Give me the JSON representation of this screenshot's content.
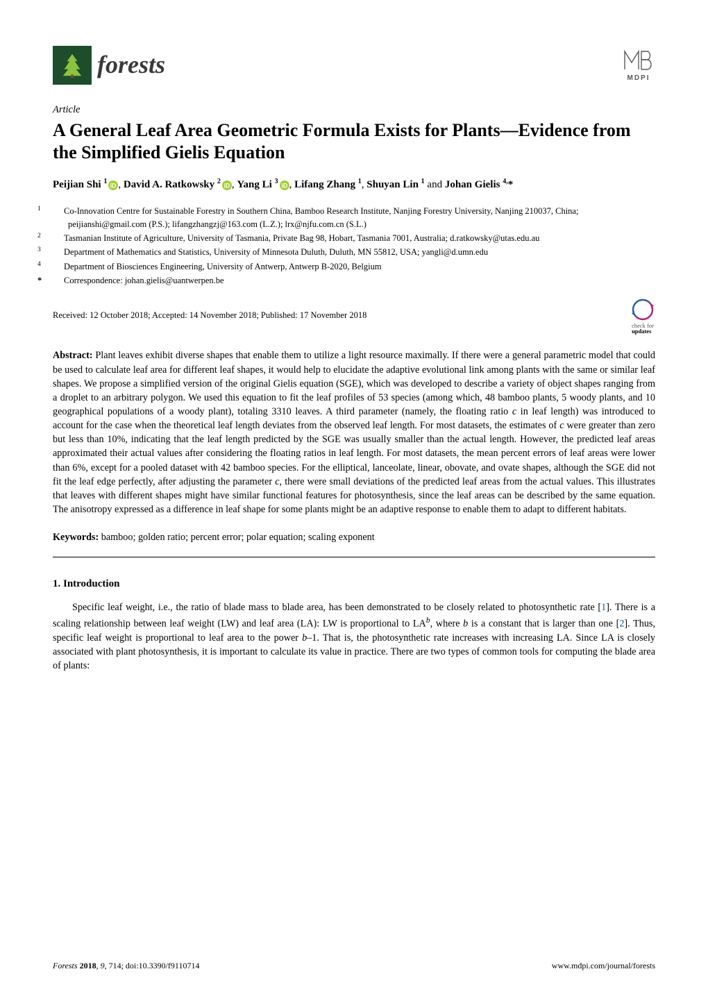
{
  "journal": {
    "name": "forests",
    "logo_bg": "#1d4d2a",
    "tree_fill": "#8bc240"
  },
  "publisher": {
    "name": "MDPI",
    "icon_stroke": "#5a5a5a"
  },
  "article_label": "Article",
  "title": "A General Leaf Area Geometric Formula Exists for Plants—Evidence from the Simplified Gielis Equation",
  "authors_html": "Peijian Shi <sup>1</sup>{orcid}, David A. Ratkowsky <sup>2</sup>{orcid}, Yang Li <sup>3</sup>{orcid}, Lifang Zhang <sup>1</sup>, Shuyan Lin <sup>1</sup> and Johan Gielis <sup>4,</sup>*",
  "authors": {
    "list": [
      {
        "name": "Peijian Shi",
        "sup": "1",
        "orcid": true
      },
      {
        "name": "David A. Ratkowsky",
        "sup": "2",
        "orcid": true
      },
      {
        "name": "Yang Li",
        "sup": "3",
        "orcid": true
      },
      {
        "name": "Lifang Zhang",
        "sup": "1",
        "orcid": false
      },
      {
        "name": "Shuyan Lin",
        "sup": "1",
        "orcid": false
      },
      {
        "name": "Johan Gielis",
        "sup": "4,",
        "orcid": false,
        "corresponding": true
      }
    ],
    "joiner": ", ",
    "last_joiner": " and "
  },
  "affiliations": [
    {
      "num": "1",
      "text": "Co-Innovation Centre for Sustainable Forestry in Southern China, Bamboo Research Institute, Nanjing Forestry University, Nanjing 210037, China; peijianshi@gmail.com (P.S.); lifangzhangzj@163.com (L.Z.); lrx@njfu.com.cn (S.L.)"
    },
    {
      "num": "2",
      "text": "Tasmanian Institute of Agriculture, University of Tasmania, Private Bag 98, Hobart, Tasmania 7001, Australia; d.ratkowsky@utas.edu.au"
    },
    {
      "num": "3",
      "text": "Department of Mathematics and Statistics, University of Minnesota Duluth, Duluth, MN 55812, USA; yangli@d.umn.edu"
    },
    {
      "num": "4",
      "text": "Department of Biosciences Engineering, University of Antwerp, Antwerp B-2020, Belgium"
    }
  ],
  "correspondence": {
    "symbol": "*",
    "text": "Correspondence: johan.gielis@uantwerpen.be"
  },
  "dates": "Received: 12 October 2018; Accepted: 14 November 2018; Published: 17 November 2018",
  "check_updates": {
    "line1": "check for",
    "line2": "updates"
  },
  "abstract": {
    "label": "Abstract:",
    "text": "Plant leaves exhibit diverse shapes that enable them to utilize a light resource maximally. If there were a general parametric model that could be used to calculate leaf area for different leaf shapes, it would help to elucidate the adaptive evolutional link among plants with the same or similar leaf shapes. We propose a simplified version of the original Gielis equation (SGE), which was developed to describe a variety of object shapes ranging from a droplet to an arbitrary polygon. We used this equation to fit the leaf profiles of 53 species (among which, 48 bamboo plants, 5 woody plants, and 10 geographical populations of a woody plant), totaling 3310 leaves. A third parameter (namely, the floating ratio c in leaf length) was introduced to account for the case when the theoretical leaf length deviates from the observed leaf length. For most datasets, the estimates of c were greater than zero but less than 10%, indicating that the leaf length predicted by the SGE was usually smaller than the actual length. However, the predicted leaf areas approximated their actual values after considering the floating ratios in leaf length. For most datasets, the mean percent errors of leaf areas were lower than 6%, except for a pooled dataset with 42 bamboo species. For the elliptical, lanceolate, linear, obovate, and ovate shapes, although the SGE did not fit the leaf edge perfectly, after adjusting the parameter c, there were small deviations of the predicted leaf areas from the actual values. This illustrates that leaves with different shapes might have similar functional features for photosynthesis, since the leaf areas can be described by the same equation. The anisotropy expressed as a difference in leaf shape for some plants might be an adaptive response to enable them to adapt to different habitats."
  },
  "keywords": {
    "label": "Keywords:",
    "text": "bamboo; golden ratio; percent error; polar equation; scaling exponent"
  },
  "section": {
    "heading": "1. Introduction",
    "paragraph": "Specific leaf weight, i.e., the ratio of blade mass to blade area, has been demonstrated to be closely related to photosynthetic rate [1]. There is a scaling relationship between leaf weight (LW) and leaf area (LA): LW is proportional to LA^b, where b is a constant that is larger than one [2]. Thus, specific leaf weight is proportional to leaf area to the power b–1. That is, the photosynthetic rate increases with increasing LA. Since LA is closely associated with plant photosynthesis, it is important to calculate its value in practice. There are two types of common tools for computing the blade area of plants:"
  },
  "footer": {
    "left_html": "Forests 2018, 9, 714; doi:10.3390/f9110714",
    "left": {
      "journal": "Forests",
      "year": "2018",
      "vol": "9",
      "page": "714",
      "doi": "doi:10.3390/f9110714"
    },
    "right": "www.mdpi.com/journal/forests"
  },
  "colors": {
    "text": "#000000",
    "citation": "#0a5a9e",
    "orcid_green": "#a6ce39",
    "check_purple": "#b31b7a",
    "check_blue": "#2c5da3"
  }
}
